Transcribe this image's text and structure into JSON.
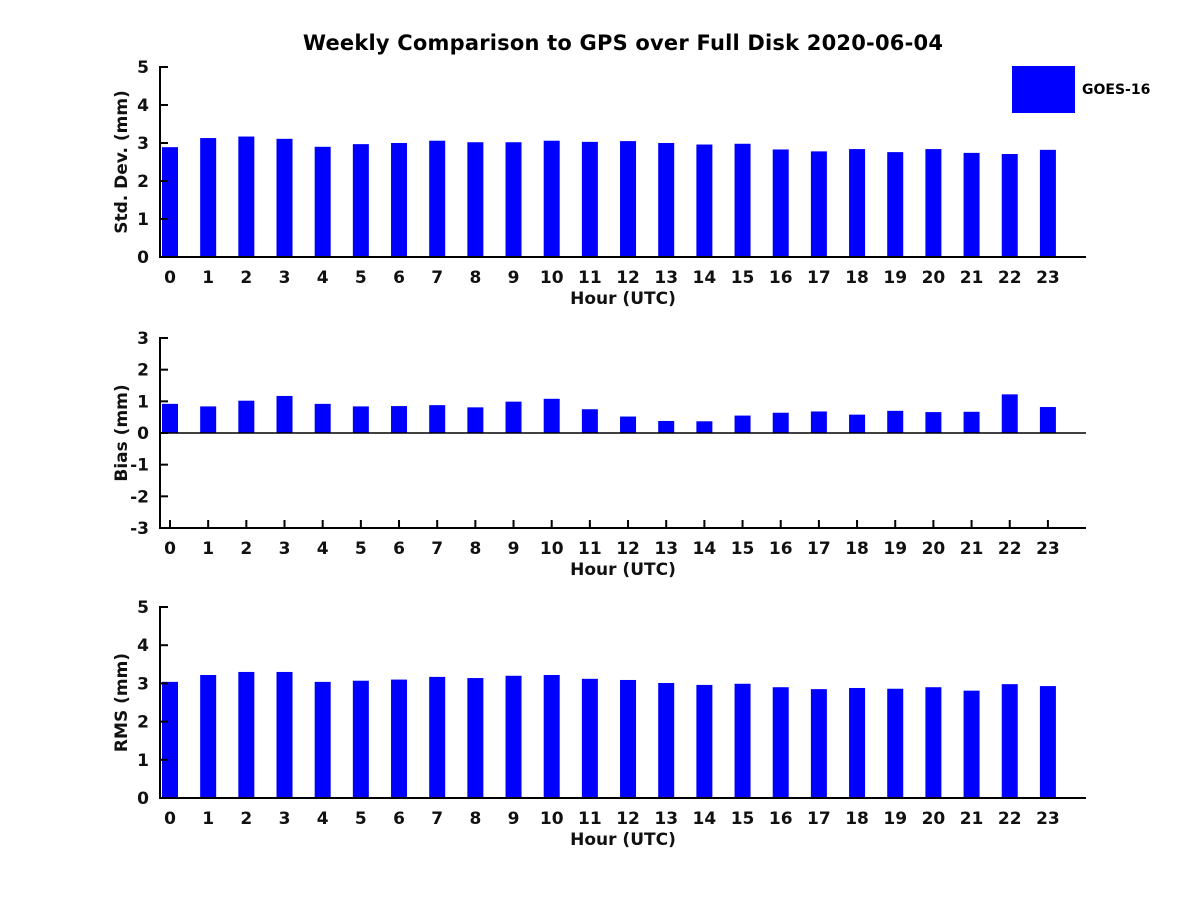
{
  "figure": {
    "title": "Weekly Comparison to GPS over Full Disk 2020-06-04",
    "legend": {
      "label": "GOES-16",
      "color": "#0000ff",
      "position": "top-right"
    },
    "background": "#ffffff",
    "text_color": "#000000",
    "axis_color": "#000000"
  },
  "chart_data": [
    {
      "type": "bar",
      "name": "std-dev",
      "title": "",
      "xlabel": "Hour (UTC)",
      "ylabel": "Std. Dev. (mm)",
      "ylim": [
        0,
        5
      ],
      "yticks": [
        0,
        1,
        2,
        3,
        4,
        5
      ],
      "grid": false,
      "zero_line": false,
      "categories": [
        "0",
        "1",
        "2",
        "3",
        "4",
        "5",
        "6",
        "7",
        "8",
        "9",
        "10",
        "11",
        "12",
        "13",
        "14",
        "15",
        "16",
        "17",
        "18",
        "19",
        "20",
        "21",
        "22",
        "23"
      ],
      "series": [
        {
          "name": "GOES-16",
          "color": "#0000ff",
          "values": [
            2.89,
            3.13,
            3.17,
            3.11,
            2.9,
            2.97,
            3.0,
            3.06,
            3.02,
            3.02,
            3.06,
            3.03,
            3.05,
            3.0,
            2.96,
            2.98,
            2.83,
            2.78,
            2.84,
            2.76,
            2.84,
            2.74,
            2.71,
            2.82
          ]
        }
      ]
    },
    {
      "type": "bar",
      "name": "bias",
      "title": "",
      "xlabel": "Hour (UTC)",
      "ylabel": "Bias (mm)",
      "ylim": [
        -3,
        3
      ],
      "yticks": [
        -3,
        -2,
        -1,
        0,
        1,
        2,
        3
      ],
      "grid": false,
      "zero_line": true,
      "categories": [
        "0",
        "1",
        "2",
        "3",
        "4",
        "5",
        "6",
        "7",
        "8",
        "9",
        "10",
        "11",
        "12",
        "13",
        "14",
        "15",
        "16",
        "17",
        "18",
        "19",
        "20",
        "21",
        "22",
        "23"
      ],
      "series": [
        {
          "name": "GOES-16",
          "color": "#0000ff",
          "values": [
            0.92,
            0.84,
            1.02,
            1.17,
            0.92,
            0.84,
            0.85,
            0.88,
            0.81,
            0.99,
            1.08,
            0.75,
            0.52,
            0.38,
            0.37,
            0.55,
            0.64,
            0.68,
            0.58,
            0.7,
            0.66,
            0.67,
            1.22,
            0.82
          ]
        }
      ]
    },
    {
      "type": "bar",
      "name": "rms",
      "title": "",
      "xlabel": "Hour (UTC)",
      "ylabel": "RMS (mm)",
      "ylim": [
        0,
        5
      ],
      "yticks": [
        0,
        1,
        2,
        3,
        4,
        5
      ],
      "grid": false,
      "zero_line": false,
      "categories": [
        "0",
        "1",
        "2",
        "3",
        "4",
        "5",
        "6",
        "7",
        "8",
        "9",
        "10",
        "11",
        "12",
        "13",
        "14",
        "15",
        "16",
        "17",
        "18",
        "19",
        "20",
        "21",
        "22",
        "23"
      ],
      "series": [
        {
          "name": "GOES-16",
          "color": "#0000ff",
          "values": [
            3.04,
            3.22,
            3.3,
            3.3,
            3.04,
            3.07,
            3.1,
            3.17,
            3.14,
            3.2,
            3.22,
            3.12,
            3.09,
            3.01,
            2.96,
            2.99,
            2.9,
            2.85,
            2.88,
            2.86,
            2.9,
            2.81,
            2.98,
            2.93
          ]
        }
      ]
    }
  ]
}
